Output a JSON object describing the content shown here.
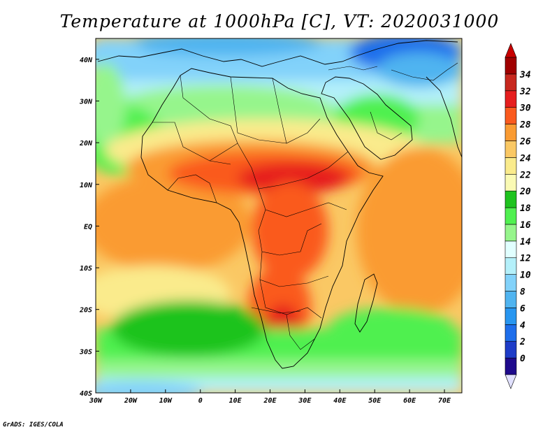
{
  "title": "Temperature at 1000hPa [C], VT: 2020031000",
  "credit": "GrADS: IGES/COLA",
  "map": {
    "lon_range": [
      -30,
      75
    ],
    "lat_range": [
      -40,
      45
    ],
    "x_ticks": [
      "30W",
      "20W",
      "10W",
      "0",
      "10E",
      "20E",
      "30E",
      "40E",
      "50E",
      "60E",
      "70E"
    ],
    "y_ticks": [
      "40N",
      "30N",
      "20N",
      "10N",
      "EQ",
      "10S",
      "20S",
      "30S",
      "40S"
    ]
  },
  "colorbar": {
    "levels": [
      "0",
      "2",
      "4",
      "6",
      "8",
      "10",
      "12",
      "14",
      "16",
      "18",
      "20",
      "22",
      "24",
      "26",
      "28",
      "30",
      "32",
      "34"
    ],
    "colors": [
      "#1e0a8c",
      "#1e3cc8",
      "#1e6eeb",
      "#2896f0",
      "#50b4f0",
      "#82d2fa",
      "#b4f0fa",
      "#e1ffff",
      "#96f58c",
      "#50f050",
      "#1ec31e",
      "#fafab4",
      "#faeb8c",
      "#fac864",
      "#fa9b32",
      "#fa5a1e",
      "#e61e1e",
      "#c8281e",
      "#a00000"
    ],
    "under_color": "#e1e1ff",
    "over_color": "#c80000"
  }
}
